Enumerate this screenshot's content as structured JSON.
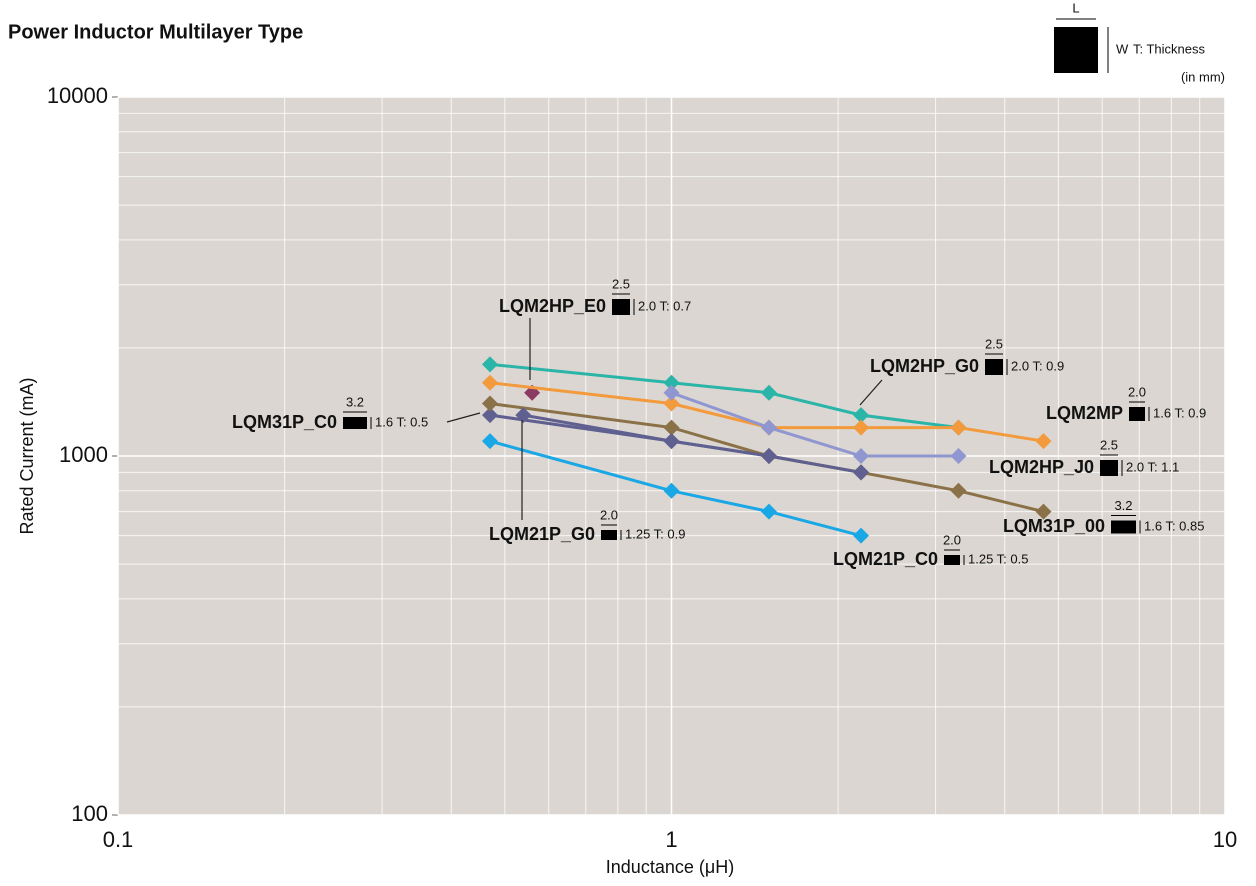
{
  "chart_data": {
    "type": "line",
    "title": "Power Inductor Multilayer Type",
    "x_label": "Inductance (μH)",
    "y_label": "Rated Current (mA)",
    "xlim": [
      0.1,
      10
    ],
    "ylim": [
      100,
      10000
    ],
    "xticks": [
      0.1,
      1,
      10
    ],
    "yticks": [
      100,
      1000,
      10000
    ],
    "log_x": true,
    "log_y": true,
    "grid": true,
    "minor_grid": true,
    "size_key": {
      "l": "L",
      "w": "W",
      "t": "T: Thickness",
      "unit": "(in mm)"
    },
    "series": [
      {
        "name": "LQM2HP_E0",
        "color": "#8b3a62",
        "x": [
          0.56
        ],
        "values": [
          1500
        ],
        "l": "2.5",
        "wt": "2.0 T: 0.7"
      },
      {
        "name": "LQM2HP_G0",
        "color": "#2ab5a8",
        "x": [
          0.47,
          1,
          1.5,
          2.2,
          3.3
        ],
        "values": [
          1800,
          1600,
          1500,
          1300,
          1200
        ],
        "l": "2.5",
        "wt": "2.0 T: 0.9"
      },
      {
        "name": "LQM2MP",
        "color": "#f39a3c",
        "x": [
          0.47,
          1,
          1.5,
          2.2,
          3.3,
          4.7
        ],
        "values": [
          1600,
          1400,
          1200,
          1200,
          1200,
          1100
        ],
        "l": "2.0",
        "wt": "1.6 T: 0.9"
      },
      {
        "name": "LQM31P_C0",
        "color": "#5f6090",
        "x": [
          0.47,
          1,
          1.5,
          2.2
        ],
        "values": [
          1300,
          1100,
          1000,
          900
        ],
        "l": "3.2",
        "wt": "1.6 T: 0.5"
      },
      {
        "name": "LQM2HP_J0",
        "color": "#8f96d0",
        "x": [
          1,
          1.5,
          2.2,
          3.3
        ],
        "values": [
          1500,
          1200,
          1000,
          1000
        ],
        "l": "2.5",
        "wt": "2.0 T: 1.1"
      },
      {
        "name": "LQM31P_00",
        "color": "#8b7147",
        "x": [
          0.47,
          1,
          1.5,
          2.2,
          3.3,
          4.7
        ],
        "values": [
          1400,
          1200,
          1000,
          900,
          800,
          700
        ],
        "l": "3.2",
        "wt": "1.6 T: 0.85"
      },
      {
        "name": "LQM21P_G0",
        "color": "#5f6090",
        "x": [
          0.54,
          1,
          1.5,
          2.2
        ],
        "values": [
          1300,
          1100,
          1000,
          900
        ],
        "l": "2.0",
        "wt": "1.25 T: 0.9"
      },
      {
        "name": "LQM21P_C0",
        "color": "#1aa7e6",
        "x": [
          0.47,
          1,
          1.5,
          2.2
        ],
        "values": [
          1100,
          800,
          700,
          600
        ],
        "l": "2.0",
        "wt": "1.25 T: 0.5"
      }
    ]
  }
}
